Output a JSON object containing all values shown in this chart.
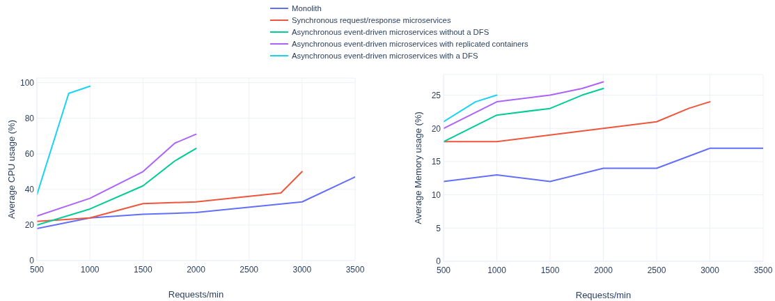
{
  "chart_data": [
    {
      "type": "line",
      "xlabel": "Requests/min",
      "ylabel": "Average CPU usage (%)",
      "xlim": [
        500,
        3500
      ],
      "xticks": [
        500,
        1000,
        1500,
        2000,
        2500,
        3000,
        3500
      ],
      "ylim": [
        0,
        102.6
      ],
      "yticks": [
        0,
        20,
        40,
        60,
        80,
        100
      ],
      "grid": true,
      "legend": "top",
      "series": [
        {
          "name": "Monolith",
          "color": "#636efa",
          "x": [
            500,
            1000,
            1500,
            2000,
            3000,
            3500
          ],
          "values": [
            18,
            24,
            26,
            27,
            33,
            47
          ]
        },
        {
          "name": "Synchronous request/response microservices",
          "color": "#ef553b",
          "x": [
            500,
            1000,
            1500,
            2000,
            2800,
            3000
          ],
          "values": [
            22,
            24,
            32,
            33,
            38,
            50
          ]
        },
        {
          "name": "Asynchronous event-driven microservices without a DFS",
          "color": "#00cc96",
          "x": [
            500,
            1000,
            1500,
            1800,
            2000
          ],
          "values": [
            20,
            29,
            42,
            56,
            63
          ]
        },
        {
          "name": "Asynchronous event-driven microservices with replicated containers",
          "color": "#ab63fa",
          "x": [
            500,
            1000,
            1500,
            1800,
            2000
          ],
          "values": [
            25,
            35,
            50,
            66,
            71
          ]
        },
        {
          "name": "Asynchronous event-driven microservices with a DFS",
          "color": "#19d3f3",
          "x": [
            500,
            800,
            1000
          ],
          "values": [
            37,
            94,
            98
          ]
        }
      ]
    },
    {
      "type": "line",
      "xlabel": "Requests/min",
      "ylabel": "Average Memory usage (%)",
      "xlim": [
        500,
        3500
      ],
      "xticks": [
        500,
        1000,
        1500,
        2000,
        2500,
        3000,
        3500
      ],
      "ylim": [
        0,
        28.1
      ],
      "yticks": [
        0,
        5,
        10,
        15,
        20,
        25
      ],
      "grid": true,
      "series": [
        {
          "name": "Monolith",
          "color": "#636efa",
          "x": [
            500,
            1000,
            1500,
            2000,
            2500,
            3000,
            3500
          ],
          "values": [
            12,
            13,
            12,
            14,
            14,
            17,
            17
          ]
        },
        {
          "name": "Synchronous request/response microservices",
          "color": "#ef553b",
          "x": [
            500,
            1000,
            1500,
            2000,
            2500,
            2800,
            3000
          ],
          "values": [
            18,
            18,
            19,
            20,
            21,
            23,
            24
          ]
        },
        {
          "name": "Asynchronous event-driven microservices without a DFS",
          "color": "#00cc96",
          "x": [
            500,
            1000,
            1500,
            1800,
            2000
          ],
          "values": [
            18,
            22,
            23,
            25,
            26
          ]
        },
        {
          "name": "Asynchronous event-driven microservices with replicated containers",
          "color": "#ab63fa",
          "x": [
            500,
            1000,
            1500,
            1800,
            2000
          ],
          "values": [
            20,
            24,
            25,
            26,
            27
          ]
        },
        {
          "name": "Asynchronous event-driven microservices with a DFS",
          "color": "#19d3f3",
          "x": [
            500,
            800,
            1000
          ],
          "values": [
            21,
            24,
            25
          ]
        }
      ]
    }
  ]
}
